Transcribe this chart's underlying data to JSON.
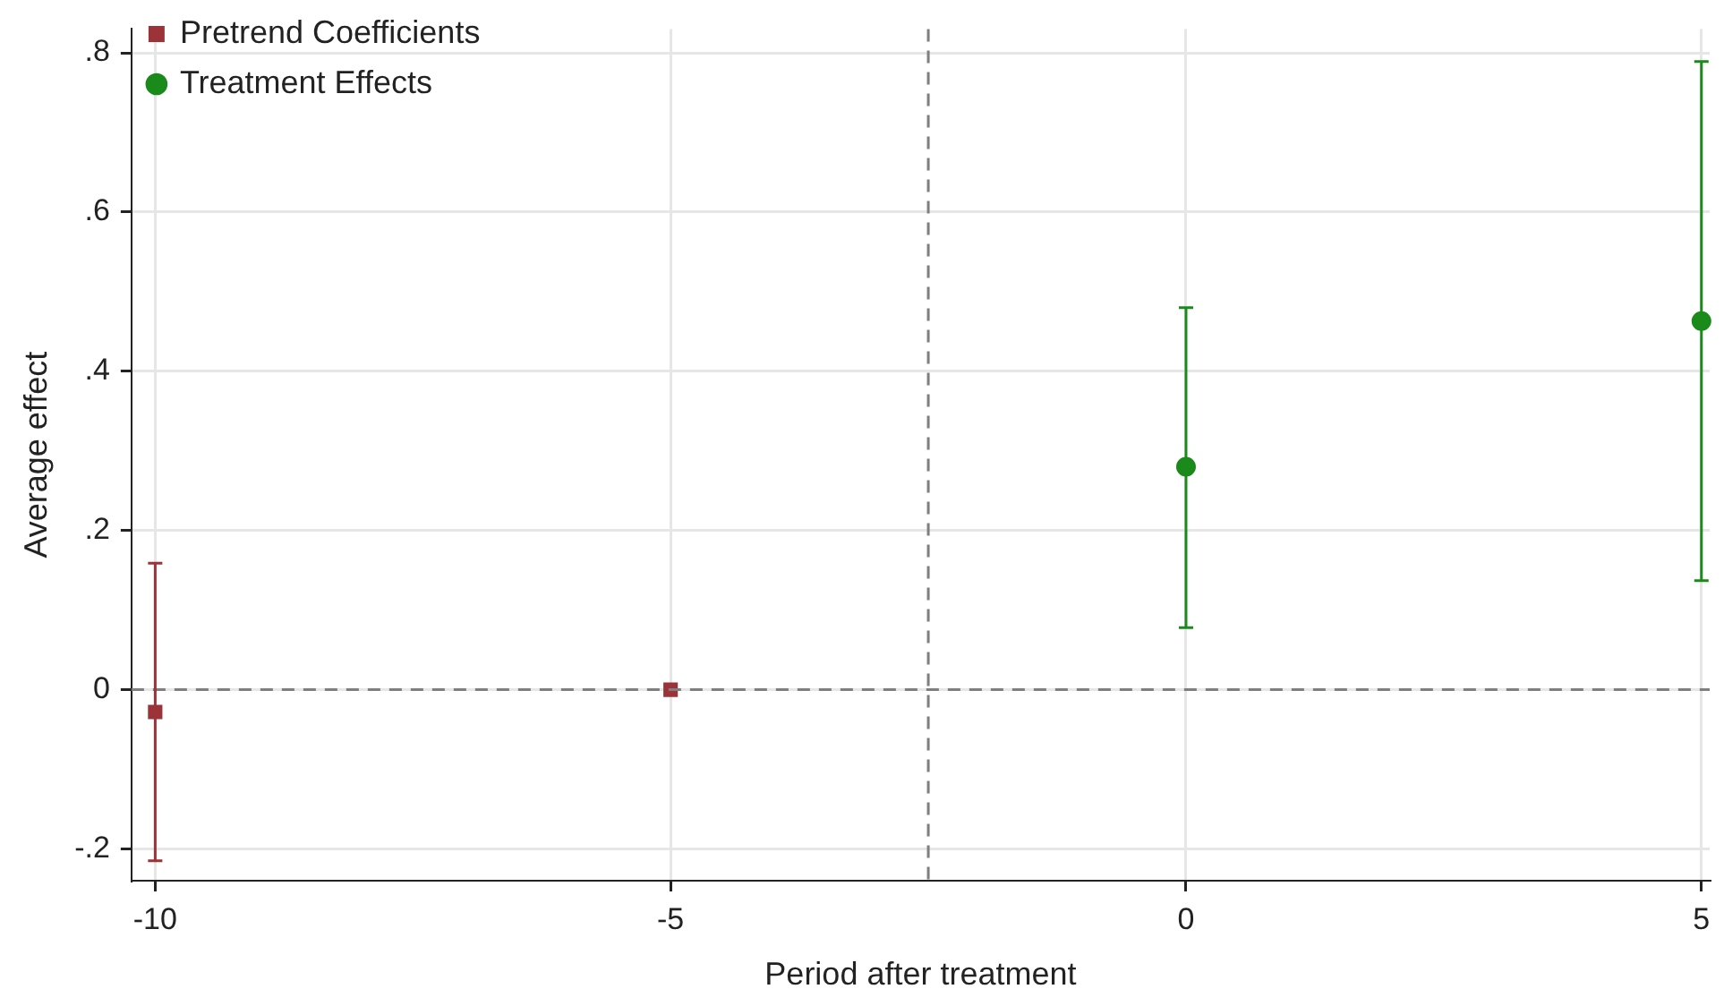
{
  "chart_data": {
    "type": "scatter",
    "xlabel": "Period after treatment",
    "ylabel": "Average effect",
    "xlim": [
      -10.23,
      5.08
    ],
    "xticks": [
      -10,
      -5,
      0,
      5
    ],
    "ylim": [
      -0.24,
      0.83
    ],
    "yticks": [
      {
        "value": -0.2,
        "label": "-.2"
      },
      0,
      {
        "value": 0.2,
        "label": ".2"
      },
      {
        "value": 0.4,
        "label": ".4"
      },
      {
        "value": 0.6,
        "label": ".6"
      },
      {
        "value": 0.8,
        "label": ".8"
      }
    ],
    "grid": true,
    "legend": "top left",
    "series": [
      {
        "name": "Pretrend Coefficients",
        "color": "#9b3338",
        "marker": "square",
        "x": [
          -10,
          -5
        ],
        "values": [
          -0.028,
          0
        ],
        "errors": [
          [
            -0.215,
            0.159
          ],
          null
        ]
      },
      {
        "name": "Treatment Effects",
        "color": "#1a8a1a",
        "marker": "circle",
        "x": [
          0,
          5
        ],
        "values": [
          0.28,
          0.463
        ],
        "errors": [
          [
            0.078,
            0.48
          ],
          [
            0.137,
            0.789
          ]
        ]
      }
    ],
    "ref_lines": [
      {
        "axis": "x",
        "value": -2.5,
        "color": "#7f7f7f",
        "line_style": "dashed"
      },
      {
        "axis": "y",
        "value": 0,
        "color": "#7f7f7f",
        "line_style": "dashed"
      }
    ]
  }
}
